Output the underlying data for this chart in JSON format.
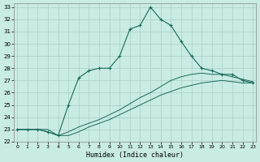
{
  "xlabel": "Humidex (Indice chaleur)",
  "bg_color": "#c8ebe4",
  "grid_color": "#a8cfc8",
  "line_color": "#1a6b5a",
  "xlim_min": -0.3,
  "xlim_max": 23.3,
  "ylim_min": 22,
  "ylim_max": 33.3,
  "xticks": [
    0,
    1,
    2,
    3,
    4,
    5,
    6,
    7,
    8,
    9,
    10,
    11,
    12,
    13,
    14,
    15,
    16,
    17,
    18,
    19,
    20,
    21,
    22,
    23
  ],
  "yticks": [
    22,
    23,
    24,
    25,
    26,
    27,
    28,
    29,
    30,
    31,
    32,
    33
  ],
  "line1_x": [
    0,
    1,
    2,
    3,
    4,
    5,
    6,
    7,
    8,
    9,
    10,
    11,
    12,
    13,
    14,
    15,
    16,
    17,
    18,
    19,
    20,
    21,
    22,
    23
  ],
  "line1_y": [
    23.0,
    23.0,
    23.0,
    23.0,
    22.5,
    22.5,
    22.8,
    23.2,
    23.5,
    23.8,
    24.2,
    24.6,
    25.0,
    25.4,
    25.8,
    26.1,
    26.4,
    26.6,
    26.8,
    26.9,
    27.0,
    26.9,
    26.8,
    26.8
  ],
  "line2_x": [
    0,
    1,
    2,
    3,
    4,
    5,
    6,
    7,
    8,
    9,
    10,
    11,
    12,
    13,
    14,
    15,
    16,
    17,
    18,
    19,
    20,
    21,
    22,
    23
  ],
  "line2_y": [
    23.0,
    23.0,
    23.0,
    22.8,
    22.5,
    22.8,
    23.2,
    23.5,
    23.8,
    24.2,
    24.6,
    25.1,
    25.6,
    26.0,
    26.5,
    27.0,
    27.3,
    27.5,
    27.6,
    27.5,
    27.5,
    27.3,
    27.1,
    26.9
  ],
  "line3_x": [
    0,
    1,
    2,
    3,
    4,
    5,
    6,
    7,
    8,
    9,
    10,
    11,
    12,
    13,
    14,
    15,
    16,
    17,
    18,
    19,
    20,
    21,
    22,
    23
  ],
  "line3_y": [
    23.0,
    23.0,
    23.0,
    22.8,
    22.5,
    25.0,
    27.2,
    27.8,
    28.0,
    28.0,
    29.0,
    31.2,
    31.5,
    33.0,
    32.0,
    31.5,
    30.2,
    29.0,
    28.0,
    27.8,
    27.5,
    27.5,
    27.0,
    26.8
  ]
}
